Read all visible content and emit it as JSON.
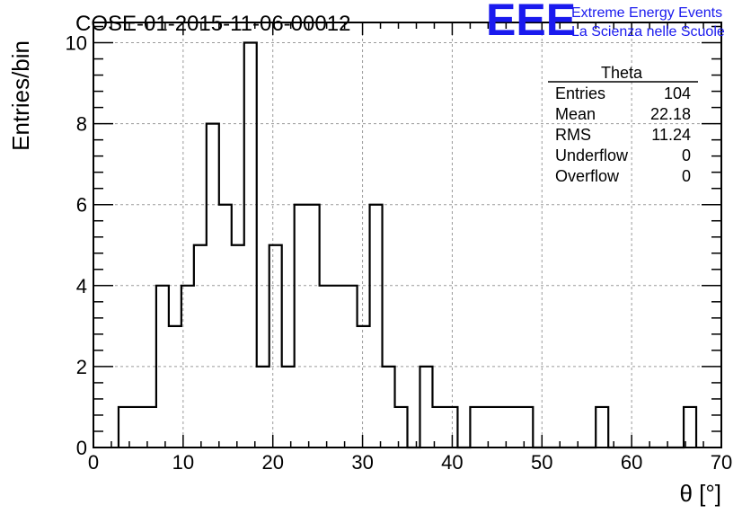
{
  "chart_data": {
    "type": "bar",
    "title": "COSE-01-2015-11-06-00012",
    "xlabel": "θ [°]",
    "ylabel": "Entries/bin",
    "xlim": [
      0,
      70
    ],
    "ylim": [
      0,
      10.5
    ],
    "x_ticks": [
      0,
      10,
      20,
      30,
      40,
      50,
      60,
      70
    ],
    "y_ticks": [
      0,
      2,
      4,
      6,
      8,
      10
    ],
    "grid": true,
    "histogram_style": "step",
    "bin_width": 1.4,
    "bins_start": [
      2.8,
      4.2,
      5.6,
      7.0,
      8.4,
      9.8,
      11.2,
      12.6,
      14.0,
      15.4,
      16.8,
      18.2,
      19.6,
      21.0,
      22.4,
      23.8,
      25.2,
      26.6,
      28.0,
      29.4,
      30.8,
      32.2,
      33.6,
      35.0,
      36.4,
      37.8,
      39.2,
      40.6,
      42.0,
      43.4,
      44.8,
      46.2,
      47.6,
      49.0,
      50.4,
      51.8,
      53.2,
      54.6,
      56.0,
      57.4,
      58.8,
      60.2,
      61.6,
      63.0,
      64.4,
      65.8
    ],
    "values": [
      1,
      1,
      1,
      4,
      3,
      4,
      5,
      8,
      6,
      5,
      10,
      2,
      5,
      2,
      6,
      6,
      4,
      4,
      4,
      3,
      6,
      2,
      1,
      0,
      2,
      1,
      1,
      0,
      1,
      1,
      1,
      1,
      1,
      0,
      0,
      0,
      0,
      0,
      1,
      0,
      0,
      0,
      0,
      0,
      0,
      1
    ],
    "stats_box": {
      "name": "Theta",
      "rows": [
        {
          "label": "Entries",
          "value": "104"
        },
        {
          "label": "Mean",
          "value": "22.18"
        },
        {
          "label": "RMS",
          "value": "11.24"
        },
        {
          "label": "Underflow",
          "value": "0"
        },
        {
          "label": "Overflow",
          "value": "0"
        }
      ]
    }
  },
  "logo": {
    "mark": "EEE",
    "line1": "Extreme Energy Events",
    "line2": "La Scienza nelle Scuole",
    "color": "#1a1aee"
  }
}
